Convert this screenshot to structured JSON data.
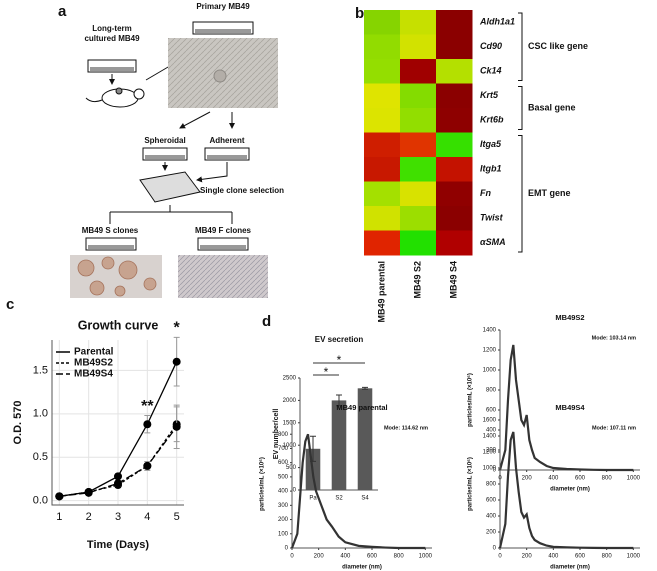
{
  "panel_labels": [
    "a",
    "b",
    "c",
    "d"
  ],
  "diagram": {
    "long_term": "Long-term cultured MB49",
    "primary": "Primary MB49",
    "spheroidal": "Spheroidal",
    "adherent": "Adherent",
    "selection": "Single clone selection",
    "s_clones": "MB49 S clones",
    "f_clones": "MB49 F clones"
  },
  "chart_data": [
    {
      "type": "heatmap",
      "columns": [
        "MB49 parental",
        "MB49 S2",
        "MB49 S4"
      ],
      "groups": [
        {
          "name": "CSC like gene",
          "rows": [
            {
              "gene": "Aldh1a1",
              "colors": [
                "#86d400",
                "#c6e000",
                "#8b0000"
              ]
            },
            {
              "gene": "Cd90",
              "colors": [
                "#92dc00",
                "#d2e200",
                "#8b0000"
              ]
            },
            {
              "gene": "Ck14",
              "colors": [
                "#94de00",
                "#a00000",
                "#b4e000"
              ]
            }
          ]
        },
        {
          "name": "Basal gene",
          "rows": [
            {
              "gene": "Krt5",
              "colors": [
                "#dfe400",
                "#84dc00",
                "#8b0000"
              ]
            },
            {
              "gene": "Krt6b",
              "colors": [
                "#dce400",
                "#92de00",
                "#8e0000"
              ]
            }
          ]
        },
        {
          "name": "EMT gene",
          "rows": [
            {
              "gene": "Itga5",
              "colors": [
                "#cf1e00",
                "#e03400",
                "#36e000"
              ]
            },
            {
              "gene": "Itgb1",
              "colors": [
                "#c81800",
                "#40e000",
                "#c41200"
              ]
            },
            {
              "gene": "Fn",
              "colors": [
                "#a4e000",
                "#d8e200",
                "#900000"
              ]
            },
            {
              "gene": "Twist",
              "colors": [
                "#d0e200",
                "#9cde00",
                "#8b0000"
              ]
            },
            {
              "gene": "αSMA",
              "colors": [
                "#e02400",
                "#22e000",
                "#b00000"
              ]
            }
          ]
        }
      ]
    },
    {
      "type": "line",
      "title": "Growth curve",
      "xlabel": "Time (Days)",
      "ylabel": "O.D. 570",
      "x": [
        1,
        2,
        3,
        4,
        5
      ],
      "xlim": [
        0.75,
        5.25
      ],
      "xticks": [
        1,
        2,
        3,
        4,
        5
      ],
      "ylim": [
        -0.05,
        1.85
      ],
      "yticks": [
        {
          "value": 0,
          "label": "0.0"
        },
        {
          "value": 0.5,
          "label": "0.5"
        },
        {
          "value": 1,
          "label": "1.0"
        },
        {
          "value": 1.5,
          "label": "1.5"
        }
      ],
      "grid": true,
      "markers": true,
      "legend": "upper left",
      "series": [
        {
          "name": "Parental",
          "color": "#000000",
          "dash": "solid",
          "values": [
            0.05,
            0.1,
            0.28,
            0.88,
            1.6
          ],
          "errors": [
            0.01,
            0.02,
            0.03,
            0.1,
            0.28
          ]
        },
        {
          "name": "MB49S2",
          "color": "#000000",
          "dash": "dashed",
          "values": [
            0.05,
            0.1,
            0.18,
            0.4,
            0.88
          ],
          "errors": [
            0.01,
            0.02,
            0.03,
            0.05,
            0.2
          ]
        },
        {
          "name": "MB49S4",
          "color": "#000000",
          "dash": "long-dashed",
          "values": [
            0.05,
            0.09,
            0.2,
            0.4,
            0.85
          ],
          "errors": [
            0.01,
            0.02,
            0.03,
            0.05,
            0.25
          ]
        }
      ],
      "annotations": [
        {
          "text": "**",
          "x": 4
        },
        {
          "text": "*",
          "x": 5
        }
      ]
    },
    {
      "type": "bar",
      "title": "EV secretion",
      "ylabel": "EV number/cell",
      "categories": [
        "Pa",
        "S2",
        "S4"
      ],
      "values": [
        920,
        2000,
        2270
      ],
      "errors": [
        280,
        120,
        20
      ],
      "color": "#595959",
      "ylim": [
        0,
        2500
      ],
      "yticks": [
        0,
        500,
        1000,
        1500,
        2000,
        2500
      ],
      "significance": [
        {
          "text": "*",
          "from": "Pa",
          "to": "S2"
        },
        {
          "text": "*",
          "from": "Pa",
          "to": "S4"
        }
      ]
    },
    {
      "type": "line",
      "title": "MB49S2",
      "annotation": "Mode: 103.14 nm",
      "xlabel": "diameter (nm)",
      "ylabel": "particles/mL (×10⁶)",
      "x": [
        0,
        40,
        60,
        80,
        100,
        120,
        140,
        160,
        180,
        200,
        220,
        240,
        260,
        300,
        350,
        400,
        500,
        600,
        700,
        800,
        1000
      ],
      "xlim": [
        0,
        1050
      ],
      "xticks": [
        0,
        200,
        400,
        600,
        800,
        1000
      ],
      "ylim": [
        0,
        1400
      ],
      "yticks": [
        0,
        200,
        400,
        600,
        800,
        1000,
        1200,
        1400
      ],
      "series": [
        {
          "color": "#333333",
          "values": [
            0,
            200,
            700,
            1100,
            1250,
            900,
            700,
            500,
            450,
            550,
            300,
            200,
            120,
            80,
            40,
            20,
            10,
            5,
            2,
            0,
            0
          ]
        }
      ]
    },
    {
      "type": "line",
      "title": "MB49 parental",
      "annotation": "Mode: 114.62 nm",
      "xlabel": "diameter (nm)",
      "ylabel": "particles/mL (×10⁶)",
      "x": [
        0,
        40,
        60,
        80,
        100,
        120,
        140,
        160,
        180,
        200,
        220,
        240,
        260,
        300,
        350,
        400,
        500,
        600,
        700,
        800,
        1000
      ],
      "xlim": [
        0,
        1050
      ],
      "xticks": [
        0,
        200,
        400,
        600,
        800,
        1000
      ],
      "ylim": [
        0,
        900
      ],
      "yticks": [
        0,
        100,
        200,
        300,
        400,
        500,
        600,
        700,
        800
      ],
      "series": [
        {
          "color": "#333333",
          "values": [
            0,
            100,
            350,
            600,
            750,
            800,
            650,
            500,
            400,
            350,
            300,
            250,
            200,
            150,
            80,
            40,
            15,
            8,
            3,
            0,
            0
          ]
        }
      ]
    },
    {
      "type": "line",
      "title": "MB49S4",
      "annotation": "Mode: 107.11 nm",
      "xlabel": "diameter (nm)",
      "ylabel": "particles/mL (×10⁶)",
      "x": [
        0,
        40,
        60,
        80,
        100,
        120,
        140,
        160,
        180,
        200,
        220,
        240,
        260,
        300,
        350,
        400,
        500,
        600,
        700,
        800,
        1000
      ],
      "xlim": [
        0,
        1050
      ],
      "xticks": [
        0,
        200,
        400,
        600,
        800,
        1000
      ],
      "ylim": [
        0,
        1600
      ],
      "yticks": [
        0,
        200,
        400,
        600,
        800,
        1000,
        1200,
        1400,
        1600
      ],
      "series": [
        {
          "color": "#333333",
          "values": [
            0,
            300,
            900,
            1350,
            1450,
            1000,
            700,
            450,
            380,
            420,
            250,
            150,
            100,
            60,
            30,
            15,
            8,
            4,
            2,
            0,
            0
          ]
        }
      ]
    }
  ]
}
